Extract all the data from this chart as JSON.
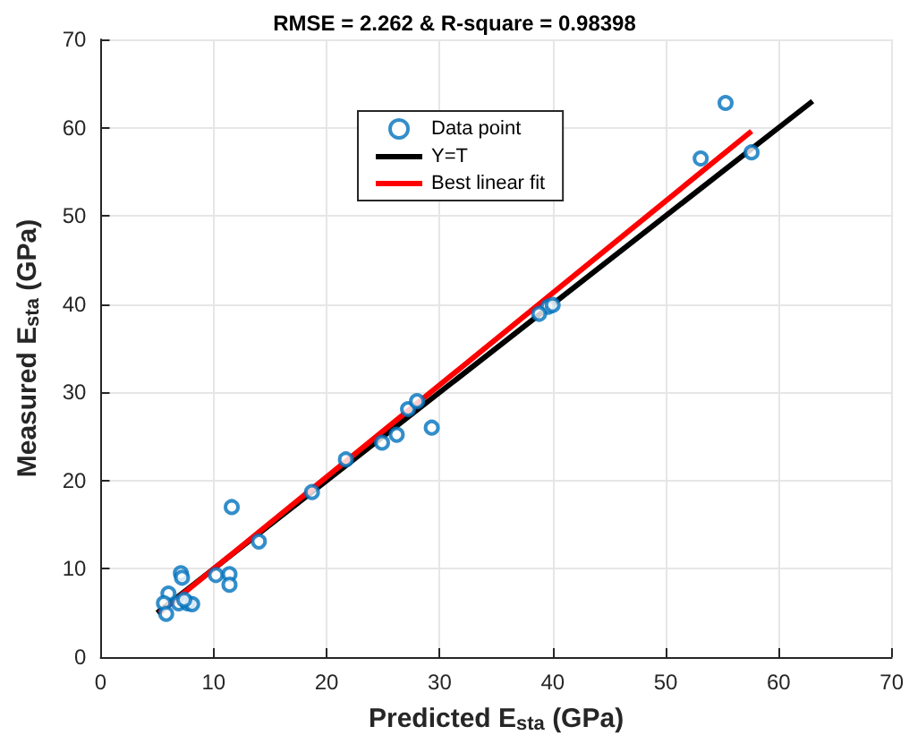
{
  "chart_data": {
    "type": "scatter",
    "title": "RMSE = 2.262 & R-square = 0.98398",
    "xlabel": "Predicted E$_{sta}$ (GPa)",
    "ylabel": "Measured E$_{sta}$ (GPa)",
    "xlim": [
      0,
      70
    ],
    "xticks": [
      0,
      10,
      20,
      30,
      40,
      50,
      60,
      70
    ],
    "ylim": [
      0,
      70
    ],
    "yticks": [
      0,
      10,
      20,
      30,
      40,
      50,
      60,
      70
    ],
    "grid": true,
    "legend": "top",
    "marker": "circle",
    "series": [
      {
        "name": "Data point",
        "color": "#0072bd",
        "x": [
          11.6,
          7.1,
          7.2,
          10.2,
          11.4,
          11.4,
          14.0,
          6.0,
          5.6,
          5.8,
          6.9,
          7.7,
          8.1,
          7.4,
          21.7,
          24.9,
          26.2,
          27.2,
          28.0,
          29.3,
          18.7,
          53.1,
          55.3,
          57.6,
          39.6,
          40.0,
          38.8
        ],
        "values": [
          17.0,
          9.5,
          9.0,
          9.3,
          9.4,
          8.2,
          13.1,
          7.2,
          6.1,
          4.9,
          6.1,
          6.1,
          6.0,
          6.5,
          22.4,
          24.3,
          25.2,
          28.1,
          29.0,
          26.0,
          18.7,
          56.5,
          62.8,
          57.2,
          39.7,
          39.9,
          38.9
        ]
      },
      {
        "name": "Y=T",
        "type": "line",
        "marker": "none",
        "color": "#000000",
        "x": [
          5,
          63
        ],
        "values": [
          5,
          63
        ]
      },
      {
        "name": "Best linear fit",
        "type": "line",
        "marker": "none",
        "color": "#ff0000",
        "x": [
          5.2,
          57.6
        ],
        "values": [
          5.0,
          59.6
        ]
      }
    ]
  }
}
